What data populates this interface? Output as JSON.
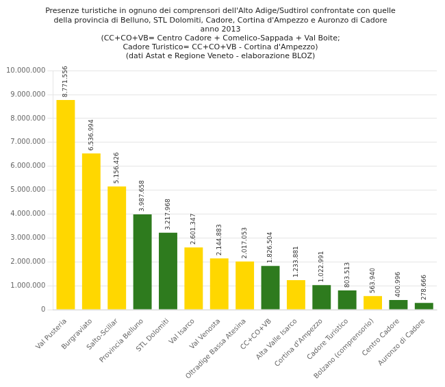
{
  "chart_data": {
    "type": "bar",
    "title": [
      "Presenze turistiche in ognuno dei comprensori dell'Alto Adige/Sudtirol confrontate con quelle",
      "della provincia di Belluno, STL Dolomiti, Cadore, Cortina d'Ampezzo e Auronzo di Cadore",
      "anno 2013",
      "(CC+CO+VB= Centro Cadore + Comelico-Sappada + Val Boite;",
      "Cadore Turistico= CC+CO+VB - Cortina d'Ampezzo)",
      "(dati Astat e Regione Veneto - elaborazione BLOZ)"
    ],
    "categories": [
      "Val Pusteria",
      "Burgraviato",
      "Salto-Sciliar",
      "Provincia Belluno",
      "STL Dolomiti",
      "Val Isarco",
      "Val Venosta",
      "Oltradige Bassa Atesina",
      "CC+CO+VB",
      "Alta Valle Isarco",
      "Cortina d'Ampezzo",
      "Cadore Turistico",
      "Bolzano (comprensorio)",
      "Centro Cadore",
      "Auronzo di Cadore"
    ],
    "values": [
      8771556,
      6536994,
      5156426,
      3987658,
      3217968,
      2601347,
      2144883,
      2017053,
      1826504,
      1233881,
      1022991,
      803513,
      563940,
      400996,
      278666
    ],
    "value_labels": [
      "8.771.556",
      "6.536.994",
      "5.156.426",
      "3.987.658",
      "3.217.968",
      "2.601.347",
      "2.144.883",
      "2.017.053",
      "1.826.504",
      "1.233.881",
      "1.022.991",
      "803.513",
      "563.940",
      "400.996",
      "278.666"
    ],
    "colors": [
      "#FFD700",
      "#FFD700",
      "#FFD700",
      "#2E7B1E",
      "#2E7B1E",
      "#FFD700",
      "#FFD700",
      "#FFD700",
      "#2E7B1E",
      "#FFD700",
      "#2E7B1E",
      "#2E7B1E",
      "#FFD700",
      "#2E7B1E",
      "#2E7B1E"
    ],
    "ylim": [
      0,
      10000000
    ],
    "yticks": [
      0,
      {
        "value": 1000000,
        "label": "1.000.000"
      },
      {
        "value": 2000000,
        "label": "2.000.000"
      },
      {
        "value": 3000000,
        "label": "3.000.000"
      },
      {
        "value": 4000000,
        "label": "4.000.000"
      },
      {
        "value": 5000000,
        "label": "5.000.000"
      },
      {
        "value": 6000000,
        "label": "6.000.000"
      },
      {
        "value": 7000000,
        "label": "7.000.000"
      },
      {
        "value": 8000000,
        "label": "8.000.000"
      },
      {
        "value": 9000000,
        "label": "9.000.000"
      },
      {
        "value": 10000000,
        "label": "10.000.000"
      }
    ],
    "grid": true,
    "data_labels": true
  }
}
